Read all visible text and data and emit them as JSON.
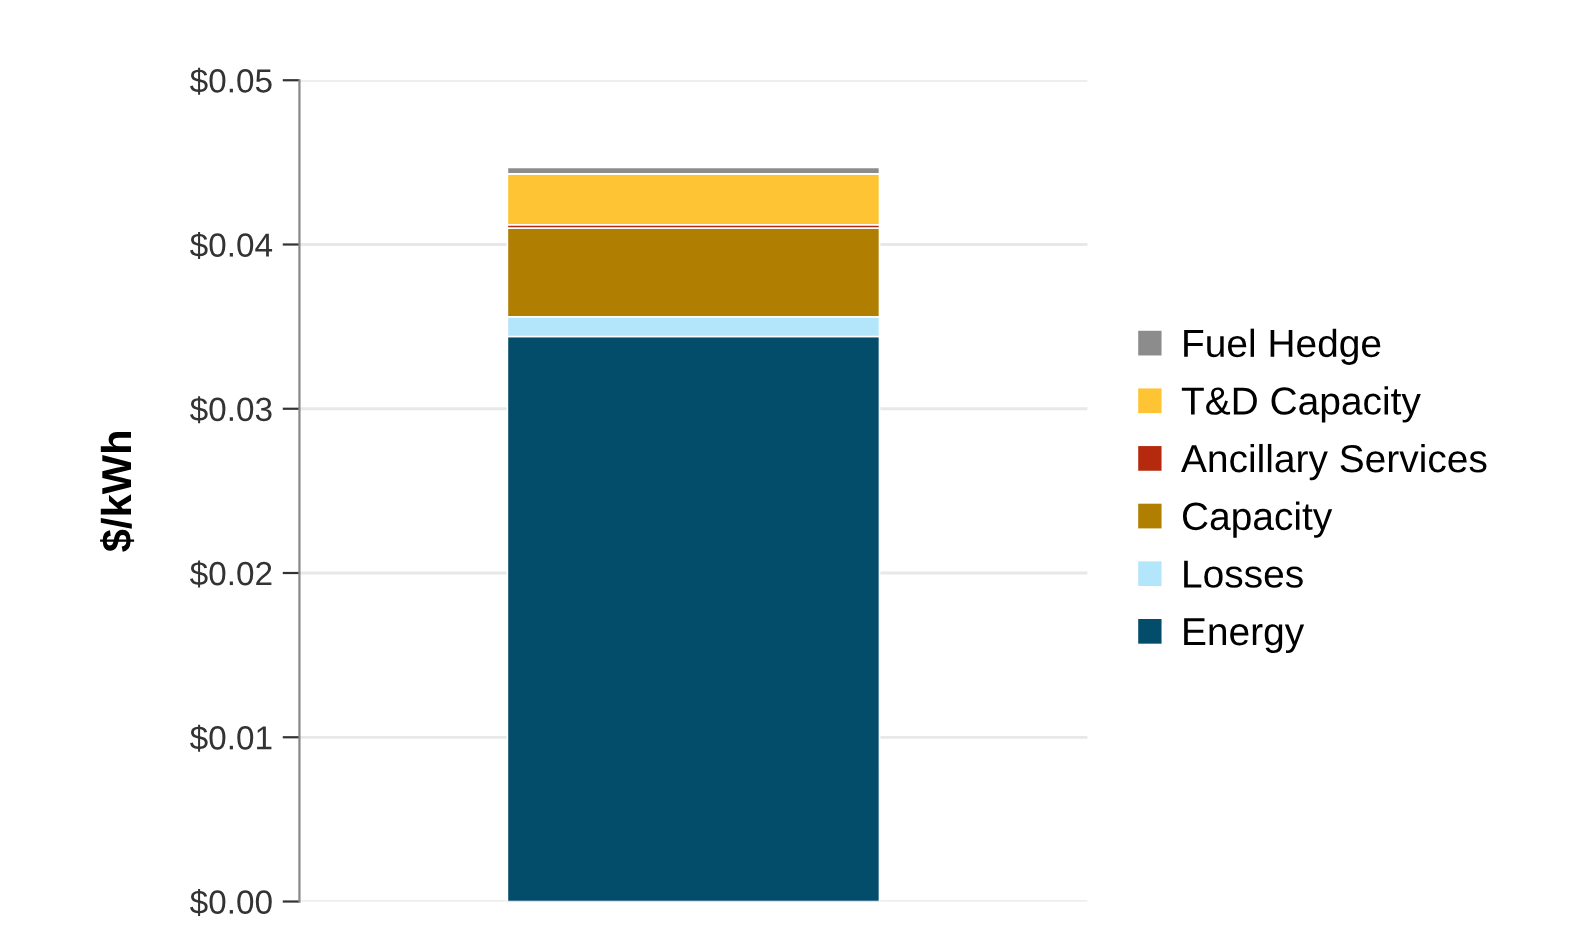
{
  "chart_data": {
    "type": "bar",
    "stacked": true,
    "ylabel": "$/kWh",
    "categories": [
      null
    ],
    "series": [
      {
        "name": "Energy",
        "color": "#034d6b",
        "values": [
          0.0344
        ]
      },
      {
        "name": "Losses",
        "color": "#b3e5fb",
        "values": [
          0.0012
        ]
      },
      {
        "name": "Capacity",
        "color": "#b07e00",
        "values": [
          0.0054
        ]
      },
      {
        "name": "Ancillary Services",
        "color": "#b52a0e",
        "values": [
          0.0002
        ]
      },
      {
        "name": "T&D Capacity",
        "color": "#ffc433",
        "values": [
          0.0031
        ]
      },
      {
        "name": "Fuel Hedge",
        "color": "#8c8c8c",
        "values": [
          0.0004
        ]
      }
    ],
    "ylim": [
      0,
      0.05
    ],
    "yticks": [
      {
        "value": 0,
        "label": "$0.00"
      },
      {
        "value": 0.01,
        "label": "$0.01"
      },
      {
        "value": 0.02,
        "label": "$0.02"
      },
      {
        "value": 0.03,
        "label": "$0.03"
      },
      {
        "value": 0.04,
        "label": "$0.04"
      },
      {
        "value": 0.05,
        "label": "$0.05"
      }
    ],
    "grid": "y",
    "legend": "right"
  }
}
